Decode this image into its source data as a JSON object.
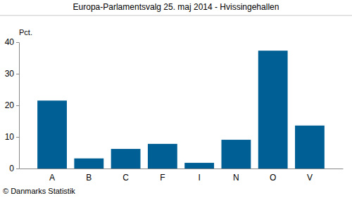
{
  "chart_data": {
    "type": "bar",
    "title": "Europa-Parlamentsvalg 25. maj 2014 - Hvissingehallen",
    "y_label": "Pct.",
    "source": "© Danmarks Statistik",
    "categories": [
      "A",
      "B",
      "C",
      "F",
      "I",
      "N",
      "O",
      "V"
    ],
    "values": [
      21.5,
      3.2,
      6.2,
      7.8,
      1.8,
      9.1,
      37.3,
      13.6
    ],
    "color": "#005f94",
    "ylim": [
      0,
      40
    ],
    "yticks": [
      0,
      10,
      20,
      30,
      40
    ],
    "grid": false
  }
}
